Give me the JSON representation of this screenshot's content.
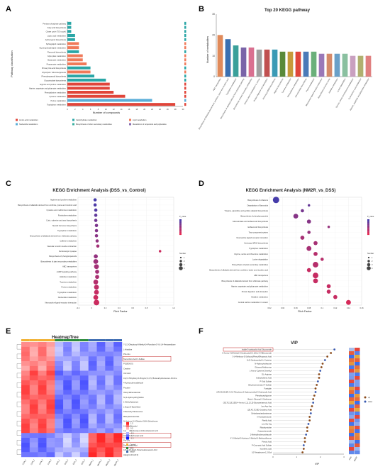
{
  "panels": {
    "A": {
      "letter": "A",
      "xlabel": "Number of compounds",
      "ylabel": "Pathway classification"
    },
    "B": {
      "letter": "B",
      "title": "Top 20 KEGG pathway",
      "ylabel": "Number of metabolites"
    },
    "C": {
      "letter": "C",
      "title": "KEGG Enrichment Analysis (DSS_vs_Control)",
      "xlabel": "Rich Factor"
    },
    "D": {
      "letter": "D",
      "title": "KEGG Enrichment Analysis (NM2R_vs_DSS)",
      "xlabel": "Rich Factor"
    },
    "E": {
      "letter": "E",
      "title": "HeatmapTree"
    },
    "F": {
      "letter": "F",
      "title": "VIP",
      "xlabel": "VIP"
    }
  },
  "chart_data": [
    {
      "id": "A",
      "type": "bar",
      "orientation": "horizontal",
      "categories": [
        "Pentose phosphate pathway",
        "Fatty acid biosynthesis",
        "Citrate cycle (TCA cycle)",
        "Lipoic acid metabolism",
        "Anthocyanin biosynthesis",
        "Sphingolipid metabolism",
        "Glycerophospholipid metabolism",
        "Flavonoid biosynthesis",
        "Glyoxylate metabolism",
        "Butanoate metabolism",
        "Propanoate metabolism",
        "Primary bile acid biosynthesis",
        "Glycolysis / Gluconeogenesis",
        "Phenylpropanoid biosynthesis",
        "Glucosinolate biosynthesis",
        "Arginine and proline metabolism",
        "Alanine, aspartate and glutamate metabolism",
        "Phenylalanine metabolism",
        "Tyrosine metabolism",
        "Purine metabolism",
        "Tryptophan metabolism"
      ],
      "values": [
        1,
        1,
        1,
        2,
        2,
        3,
        3,
        3,
        4,
        4,
        5,
        6,
        6,
        7,
        10,
        11,
        11,
        12,
        15,
        22,
        28
      ],
      "colors": [
        "#2aa6a6",
        "#2aa6a6",
        "#2aa6a6",
        "#2aa6a6",
        "#2aa6a6",
        "#f07a5a",
        "#f07a5a",
        "#2aa6a6",
        "#f07a5a",
        "#f07a5a",
        "#f07a5a",
        "#2aa6a6",
        "#f07a5a",
        "#2aa6a6",
        "#2aa6a6",
        "#e0453a",
        "#e0453a",
        "#e0453a",
        "#e0453a",
        "#5aaed8",
        "#e0453a"
      ],
      "xlim": [
        0,
        30
      ],
      "legend": [
        "Amino acid metabolism",
        "Carbohydrate metabolism",
        "Lipid metabolism",
        "Nucleotide metabolism",
        "Biosynthesis of other secondary metabolites",
        "Metabolism of terpenoids and polyketides"
      ],
      "legend_colors": [
        "#e0453a",
        "#2aa6a6",
        "#f07a5a",
        "#5aaed8",
        "#3bb0a0",
        "#8a6db0"
      ]
    },
    {
      "id": "B",
      "type": "bar",
      "categories": [
        "ABC transporters",
        "Biosynthesis of alkaloids derived from ornithine, lysine and nicotinic acid",
        "Tryptophan metabolism",
        "Biosynthesis of alkaloids derived from shikimate pathway",
        "Biosynthesis of plant secondary metabolites",
        "Central carbon metabolism in cancer",
        "Protein digestion and absorption",
        "Aminoacyl-tRNA biosynthesis",
        "Arginine biosynthesis",
        "Tyrosine metabolism",
        "Phenylalanine metabolism",
        "Glucosinolate biosynthesis",
        "Purine metabolism",
        "Neuroactive ligand-receptor interaction",
        "Biosynthesis of amino acids",
        "Histidine metabolism",
        "Lysine degradation",
        "Glycine, serine and threonine metabolism",
        "Cyanoamino acid metabolism",
        "Alanine, aspartate and glutamate metabolism"
      ],
      "values": [
        20,
        18,
        15,
        14,
        14,
        13,
        13,
        13,
        12,
        12,
        12,
        12,
        12,
        11,
        11,
        11,
        11,
        10,
        10,
        10
      ],
      "colors": [
        "#e08a5a",
        "#3a6fb0",
        "#3aa09a",
        "#7a64a8",
        "#d97090",
        "#a0a0a0",
        "#c05050",
        "#3a9ab5",
        "#5a8a3a",
        "#c79a3a",
        "#e0453a",
        "#4a7ab8",
        "#6ab07a",
        "#9a78b8",
        "#d58a6a",
        "#6aa0c8",
        "#8ac0a0",
        "#c9a0c0",
        "#b0b070",
        "#e08080"
      ],
      "ylim": [
        0,
        30
      ]
    },
    {
      "id": "C",
      "type": "scatter",
      "categories": [
        "Arginine and proline metabolism",
        "Biosynthesis of alkaloids derived from ornithine, lysine and nicotinic acid",
        "Cysteine and methionine metabolism",
        "Pyrimidine metabolism",
        "Cutin, suberine and wax biosynthesis",
        "Steroid hormone biosynthesis",
        "Tryptophan metabolism",
        "Biosynthesis of alkaloids derived from shikimate pathway",
        "Caffeine metabolism",
        "Vascular smooth muscle contraction",
        "Serotonergic synapse",
        "Biosynthesis of phenylpropanoids",
        "Biosynthesis of plant secondary metabolites",
        "ABC transporters",
        "cAMP signaling pathway",
        "Histidine metabolism",
        "Tyrosine metabolism",
        "Purine metabolism",
        "Tryptophan metabolism",
        "Nucleotide metabolism",
        "Neuroactive ligand-receptor interaction"
      ],
      "x": [
        0.05,
        0.05,
        0.06,
        0.06,
        0.06,
        0.07,
        0.07,
        0.07,
        0.08,
        0.09,
        1.0,
        0.06,
        0.06,
        0.07,
        0.08,
        0.08,
        0.06,
        0.07,
        0.07,
        0.06,
        0.07
      ],
      "p_value": [
        0.048,
        0.046,
        0.044,
        0.04,
        0.035,
        0.032,
        0.03,
        0.028,
        0.025,
        0.02,
        0.008,
        0.025,
        0.022,
        0.02,
        0.02,
        0.018,
        0.015,
        0.012,
        0.01,
        0.008,
        0.008
      ],
      "number": [
        2,
        2,
        2,
        2,
        2,
        2,
        2,
        2,
        2,
        2,
        1,
        3,
        4,
        4,
        3,
        3,
        4,
        4,
        4,
        4,
        5
      ],
      "xlim": [
        -0.2,
        1.2
      ]
    },
    {
      "id": "D",
      "type": "scatter",
      "categories": [
        "Biosynthesis of cofactors",
        "Degradation of flavonoids",
        "Tropane, piperidine and pyridine alkaloid biosynthesis",
        "Biosynthesis of phenylpropanoids",
        "Glucosinolate and isoflavonoid biosynthesis",
        "Isoflavonoid biosynthesis",
        "Two-component system",
        "Neuroactive ligand-receptor interaction",
        "Aminoacyl-tRNA biosynthesis",
        "Tryptophan metabolism",
        "Glycine, serine and threonine metabolism",
        "Lysine degradation",
        "Biosynthesis of plant secondary metabolites",
        "Biosynthesis of alkaloids derived from ornithine, lysine and nicotinic acid",
        "ABC transporters",
        "Biosynthesis of alkaloids derived from shikimate pathway",
        "Alanine, aspartate and glutamate metabolism",
        "Protein digestion and absorption",
        "Histidine metabolism",
        "Central carbon metabolism in cancer"
      ],
      "x": [
        0.03,
        0.08,
        0.07,
        0.06,
        0.08,
        0.11,
        0.08,
        0.07,
        0.09,
        0.08,
        0.09,
        0.1,
        0.09,
        0.08,
        0.09,
        0.09,
        0.11,
        0.11,
        0.12,
        0.14
      ],
      "p_value": [
        0.1,
        0.08,
        0.07,
        0.06,
        0.06,
        0.05,
        0.05,
        0.04,
        0.04,
        0.04,
        0.03,
        0.03,
        0.03,
        0.02,
        0.02,
        0.02,
        0.02,
        0.02,
        0.02,
        0.01
      ],
      "number": [
        6,
        1,
        2,
        4,
        3,
        1,
        2,
        3,
        3,
        4,
        3,
        2,
        5,
        3,
        5,
        4,
        3,
        3,
        3,
        4
      ],
      "xlim": [
        0.02,
        0.16
      ]
    },
    {
      "id": "E",
      "type": "heatmap",
      "rows": [
        "7-(2,3-Dihydroxy-8-Methyl-14-Pyrrolizin-5-Yl)-1,4-Pentanediione",
        "L-Histidine",
        "Phe-Glu",
        "Taurocholic Acid 3-Sulfate",
        "PI(18:0/0:0)",
        "Creatine",
        "Uric Acid",
        "3-(2,3-Trihydroxy-5-Propyl-2,3,4,7,8,8-Hexahydrocoumen-15-One",
        "4-Hydroxybenzaldehyde",
        "Proutine",
        "Oleoyl Ethanolamide",
        "N-(2-Hydroxyethyl)Valine",
        "1-Methylhydantoin",
        "L-Dopa N-Butyl Ester",
        "Chlorzethyl Nitrosourea",
        "Maleylacetoacetate",
        "N-Hydroxy-3,4-Dihydro-2(1H)-Quinolinone",
        "2,6-Quinolinediol",
        "4-(2-Aminophenyl)-2,4-Dioxobutanoic Acid",
        "Indole-3-Carboxylic Acid",
        "Pro-Leu",
        "Deoxycholic Acid",
        "4,8,12,15,18,21-Tetracosahexaenoic Acid",
        "Hdpg(3-10:1/24:0)"
      ],
      "columns": [
        "CON_1",
        "CON_2",
        "CON_3",
        "CON_4",
        "DSS_1",
        "DSS_2",
        "DSS_3",
        "DSS_4",
        "NM2R_1",
        "NM2R_2",
        "NM2R_3",
        "NM2R_4"
      ],
      "groups": [
        "Control",
        "DSS",
        "NM2R"
      ],
      "group_colors": [
        "#f0b030",
        "#2a8a3a",
        "#3a6ab0"
      ],
      "color_scale": [
        -1.5,
        1.5
      ],
      "scale_ticks": [
        "-1.5",
        "-1",
        "-0.5",
        "0",
        "0.5",
        "1",
        "1.5"
      ],
      "highlighted": [
        "Taurocholic Acid 3-Sulfate",
        "Indole-3-Carboxylic Acid",
        "Deoxycholic Acid"
      ]
    },
    {
      "id": "F",
      "type": "scatter",
      "categories": [
        "Indole-3-carboxylic Acid Glucuronide",
        "8-Amino-4-[8-Methyl-8-Azabicyclo[3.2.1]Oct-3-Yl]Benzamide",
        "3-(4-Methoxy-5-Sulfooxy)Phenyl]Propanoic Acid",
        "N-(2-Carboxyethyl)-L-Cysteine",
        "N-Hydroxyisoleucine",
        "Glutamyl-Methionine",
        "L-Homo-Cysteine Dimethyl",
        "DL-Arginine",
        "Indolylsulfonic Acid",
        "P-Tolyl Sulfate",
        "Dihydroresveratrol 4'-Sulfate",
        "Fumigitin",
        "(2R,3S,5S,6R)-3,4,5-Trihydroxy-6-Hydroxymethyl-3-Carboxylic Acid",
        "Phenylacetylglycine",
        "Beta-L-Glucosyl-2-Carbinone",
        "(3E,7E,11E,15E)-4-Amino-1,11,13,15-Eicosatetraenoic Acid",
        "Leu-Asp-Arg",
        "(2E,4Z,7Z,9E)-Octadeca Acid",
        "Dehydroepiandrosterone",
        "N-Acetylserotonin",
        "Pterilic Acid",
        "Leu-Gly-Arg",
        "Ribothymidine",
        "Octaverdeneside",
        "2-Methylthiobenzothiazole",
        "4'-O-Methyl-5-Hydroxy-3-Methyl-6-Methoxyflavone",
        "Pteroic Acid",
        "P-Coumaric Acid Sulfate",
        "Isovaleric acid",
        "10-Tetradecene-1,2-Diol"
      ],
      "values": [
        2.6,
        2.45,
        2.3,
        2.2,
        2.1,
        2.05,
        2.0,
        1.95,
        1.95,
        1.9,
        1.85,
        1.8,
        1.8,
        1.75,
        1.7,
        1.7,
        1.65,
        1.6,
        1.6,
        1.55,
        1.55,
        1.5,
        1.45,
        1.45,
        1.4,
        1.35,
        1.35,
        1.3,
        1.3,
        1.25
      ],
      "xlim": [
        0,
        3
      ],
      "x_ticks": [
        "0",
        "1",
        "2",
        "3"
      ],
      "highlighted": [
        "Indole-3-carboxylic Acid Glucuronide"
      ],
      "legend": [
        "up",
        "down"
      ],
      "legend_colors": [
        "#8a4a1a",
        "#3a5ab0"
      ],
      "side_columns": [
        "DSS",
        "NM2R"
      ]
    }
  ]
}
